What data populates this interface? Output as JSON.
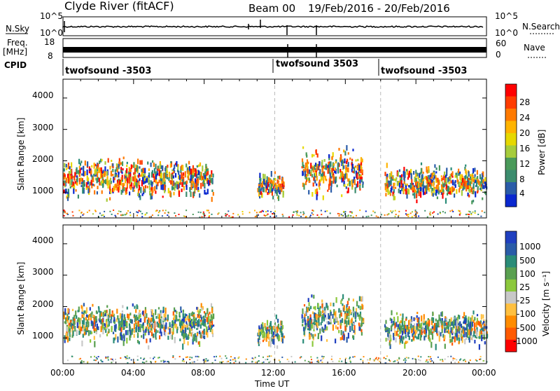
{
  "header": {
    "station": "Clyde River (fitACF)",
    "beam": "Beam 00",
    "date_range": "19/Feb/2016 - 20/Feb/2016"
  },
  "noise_panel": {
    "left_label": "N.Sky",
    "right_label": "N.Search",
    "left_ticks": [
      "10^5",
      "10^0"
    ],
    "right_ticks": [
      "10^5",
      "10^0"
    ]
  },
  "freq_panel": {
    "left_label_1": "Freq.",
    "left_label_2": "[MHz]",
    "right_label": "Nave",
    "left_ticks": [
      "18",
      "8"
    ],
    "right_ticks": [
      "60",
      "0"
    ]
  },
  "cpid": {
    "label": "CPID",
    "segments": [
      "twofsound -3503",
      "twofsound 3503",
      "twofsound -3503"
    ]
  },
  "power_panel": {
    "ylabel": "Slant Range [km]",
    "yticks": [
      "4000",
      "3000",
      "2000",
      "1000"
    ],
    "colorbar_label": "Power [dB]",
    "colorbar_ticks": [
      "28",
      "24",
      "20",
      "16",
      "12",
      "8",
      "4"
    ],
    "colorbar_colors": [
      "#ff0000",
      "#ff3c00",
      "#ff7a00",
      "#ffb400",
      "#e6d800",
      "#a6cc3c",
      "#4a9a5a",
      "#3c8c6e",
      "#2a5ca8",
      "#0a28d0"
    ]
  },
  "velocity_panel": {
    "ylabel": "Slant Range [km]",
    "yticks": [
      "4000",
      "3000",
      "2000",
      "1000"
    ],
    "colorbar_label": "Velocity [m s⁻¹]",
    "colorbar_ticks": [
      "1000",
      "500",
      "100",
      "25",
      "-25",
      "-100",
      "-500",
      "-1000"
    ],
    "colorbar_colors": [
      "#2040c0",
      "#2a5ca8",
      "#2a8c78",
      "#5aa050",
      "#8cc83c",
      "#c8c8c8",
      "#ffc040",
      "#ff8c00",
      "#ff5a00",
      "#ff0000"
    ]
  },
  "x_axis": {
    "label": "Time UT",
    "ticks": [
      "00:00",
      "04:00",
      "08:00",
      "12:00",
      "16:00",
      "20:00",
      "00:00"
    ]
  },
  "chart_data": [
    {
      "type": "heatmap",
      "title": "Power",
      "x_range_hours": [
        0,
        24
      ],
      "y_range_km": [
        180,
        4600
      ],
      "colorbar_range_db": [
        0,
        32
      ],
      "scatter_regions": [
        {
          "t_start": 0.0,
          "t_end": 8.5,
          "r_start": 700,
          "r_end": 2300,
          "value": 20
        },
        {
          "t_start": 11.0,
          "t_end": 12.5,
          "r_start": 700,
          "r_end": 1800,
          "value": 18
        },
        {
          "t_start": 13.5,
          "t_end": 17.0,
          "r_start": 700,
          "r_end": 2600,
          "value": 16
        },
        {
          "t_start": 18.2,
          "t_end": 24.0,
          "r_start": 700,
          "r_end": 2000,
          "value": 20
        }
      ]
    },
    {
      "type": "heatmap",
      "title": "Velocity",
      "x_range_hours": [
        0,
        24
      ],
      "y_range_km": [
        180,
        4600
      ],
      "colorbar_range_ms": [
        -1000,
        1000
      ],
      "scatter_regions": [
        {
          "t_start": 0.0,
          "t_end": 8.5,
          "r_start": 700,
          "r_end": 2300,
          "value": 100
        },
        {
          "t_start": 11.0,
          "t_end": 12.5,
          "r_start": 700,
          "r_end": 1800,
          "value": -500
        },
        {
          "t_start": 13.5,
          "t_end": 17.0,
          "r_start": 700,
          "r_end": 2600,
          "value": 500
        },
        {
          "t_start": 18.2,
          "t_end": 24.0,
          "r_start": 700,
          "r_end": 2000,
          "value": -500
        }
      ]
    }
  ]
}
